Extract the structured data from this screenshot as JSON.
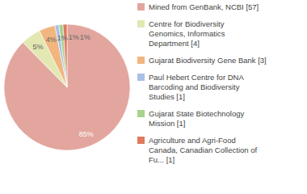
{
  "chart_data": {
    "type": "pie",
    "categories": [
      "Mined from GenBank, NCBI [57]",
      "Centre for Biodiversity\nGenomics, Informatics\nDepartment [4]",
      "Gujarat Biodiversity Gene Bank [3]",
      "Paul Hebert Centre for DNA\nBarcoding and Biodiversity\nStudies [1]",
      "Gujarat State Biotechnology\nMission [1]",
      "Agriculture and Agri-Food\nCanada, Canadian Collection of\nFu... [1]"
    ],
    "values": [
      85,
      5,
      4,
      1,
      1,
      1
    ],
    "value_labels": [
      "85%",
      "5%",
      "4%",
      "1%",
      "1%",
      "1%"
    ],
    "colors": [
      "#e2a69e",
      "#e3e8b3",
      "#f1b67f",
      "#a9c0e6",
      "#a8d28d",
      "#e07a5f"
    ],
    "data_labels": true,
    "legend": "right"
  }
}
